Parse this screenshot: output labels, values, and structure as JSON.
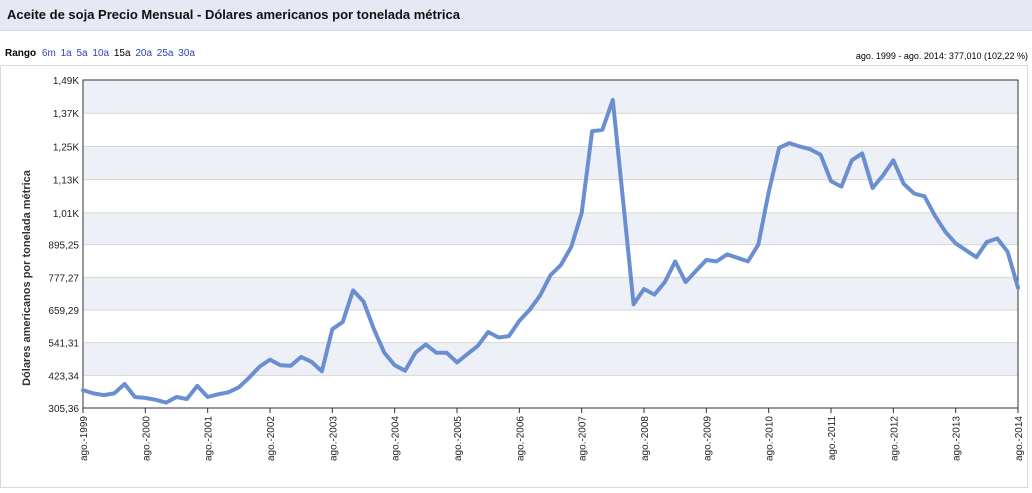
{
  "header": {
    "title": "Aceite de soja Precio Mensual - Dólares americanos por tonelada métrica"
  },
  "range": {
    "label": "Rango",
    "options": [
      "6m",
      "1a",
      "5a",
      "10a",
      "15a",
      "20a",
      "25a",
      "30a"
    ],
    "selected": "15a"
  },
  "summary": "ago. 1999 - ago. 2014: 377,010 (102,22 %)",
  "colors": {
    "line": "#6a8fd0",
    "band": "#eef0f8",
    "title_bar": "#e6e8f4",
    "link": "#2a44b8"
  },
  "chart_data": {
    "type": "line",
    "title": "",
    "ylabel": "Dólares americanos por tonelada métrica",
    "xlabel": "",
    "ylim": [
      305.36,
      1490
    ],
    "yticks": [
      305.36,
      423.34,
      541.31,
      659.29,
      777.27,
      895.25,
      1010,
      1130,
      1250,
      1370,
      1490
    ],
    "ytick_labels": [
      "305,36",
      "423,34",
      "541,31",
      "659,29",
      "777,27",
      "895,25",
      "1,01K",
      "1,13K",
      "1,25K",
      "1,37K",
      "1,49K"
    ],
    "xlim": [
      "1999-08",
      "2014-08"
    ],
    "xtick_labels": [
      "ago.-1999",
      "ago.-2000",
      "ago.-2001",
      "ago.-2002",
      "ago.-2003",
      "ago.-2004",
      "ago.-2005",
      "ago.-2006",
      "ago.-2007",
      "ago.-2008",
      "ago.-2009",
      "ago.-2010",
      "ago.-2011",
      "ago.-2012",
      "ago.-2013",
      "ago.-2014"
    ],
    "series": [
      {
        "name": "",
        "x": [
          "1999-08",
          "1999-10",
          "1999-12",
          "2000-02",
          "2000-04",
          "2000-06",
          "2000-08",
          "2000-10",
          "2000-12",
          "2001-02",
          "2001-04",
          "2001-06",
          "2001-08",
          "2001-10",
          "2001-12",
          "2002-02",
          "2002-04",
          "2002-06",
          "2002-08",
          "2002-10",
          "2002-12",
          "2003-02",
          "2003-04",
          "2003-06",
          "2003-08",
          "2003-10",
          "2003-12",
          "2004-02",
          "2004-04",
          "2004-06",
          "2004-08",
          "2004-10",
          "2004-12",
          "2005-02",
          "2005-04",
          "2005-06",
          "2005-08",
          "2005-10",
          "2005-12",
          "2006-02",
          "2006-04",
          "2006-06",
          "2006-08",
          "2006-10",
          "2006-12",
          "2007-02",
          "2007-04",
          "2007-06",
          "2007-08",
          "2007-10",
          "2007-12",
          "2008-02",
          "2008-04",
          "2008-06",
          "2008-08",
          "2008-10",
          "2008-12",
          "2009-02",
          "2009-04",
          "2009-06",
          "2009-08",
          "2009-10",
          "2009-12",
          "2010-02",
          "2010-04",
          "2010-06",
          "2010-08",
          "2010-10",
          "2010-12",
          "2011-02",
          "2011-04",
          "2011-06",
          "2011-08",
          "2011-10",
          "2011-12",
          "2012-02",
          "2012-04",
          "2012-06",
          "2012-08",
          "2012-10",
          "2012-12",
          "2013-02",
          "2013-04",
          "2013-06",
          "2013-08",
          "2013-10",
          "2013-12",
          "2014-02",
          "2014-04",
          "2014-06",
          "2014-08"
        ],
        "values": [
          370,
          358,
          352,
          358,
          392,
          345,
          342,
          335,
          325,
          345,
          338,
          385,
          345,
          355,
          362,
          380,
          415,
          455,
          480,
          460,
          458,
          490,
          472,
          438,
          590,
          616,
          730,
          690,
          590,
          505,
          460,
          440,
          505,
          535,
          505,
          505,
          470,
          500,
          530,
          580,
          560,
          565,
          620,
          660,
          712,
          785,
          822,
          888,
          1010,
          1305,
          1310,
          1418,
          1050,
          680,
          735,
          715,
          760,
          835,
          760,
          800,
          840,
          835,
          860,
          848,
          835,
          895,
          1085,
          1245,
          1262,
          1250,
          1240,
          1220,
          1125,
          1105,
          1200,
          1225,
          1100,
          1145,
          1200,
          1115,
          1080,
          1070,
          1000,
          942,
          900,
          875,
          850,
          905,
          918,
          870,
          740
        ]
      }
    ]
  }
}
